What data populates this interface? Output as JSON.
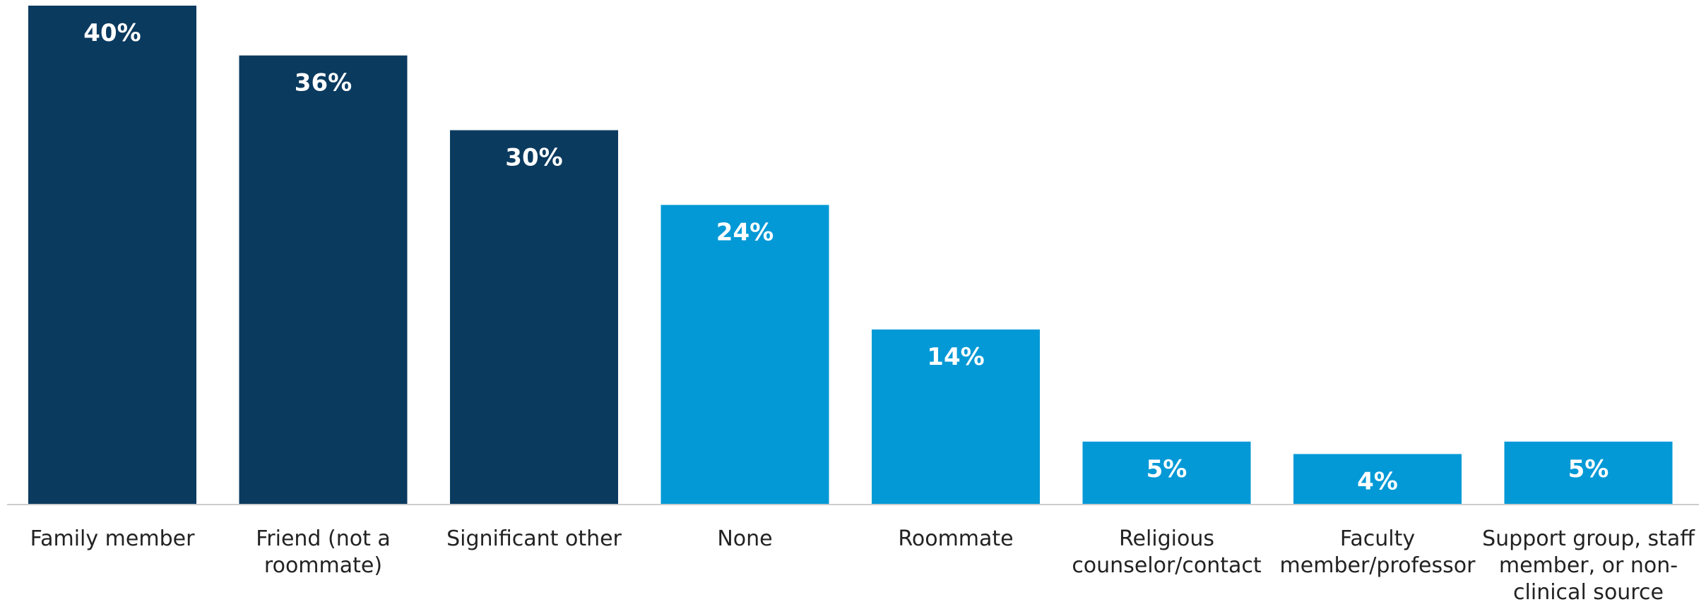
{
  "chart_data": {
    "type": "bar",
    "title": "",
    "xlabel": "",
    "ylabel": "",
    "ylim": [
      0,
      40
    ],
    "grid": false,
    "legend": "none",
    "value_suffix": "%",
    "categories": [
      "Family member",
      "Friend (not a roommate)",
      "Significant other",
      "None",
      "Roommate",
      "Religious counselor/contact",
      "Faculty member/professor",
      "Support group, staff member, or non-clinical source"
    ],
    "category_label_lines": [
      [
        "Family member"
      ],
      [
        "Friend (not a",
        "roommate)"
      ],
      [
        "Significant other"
      ],
      [
        "None"
      ],
      [
        "Roommate"
      ],
      [
        "Religious",
        "counselor/contact"
      ],
      [
        "Faculty",
        "member/professor"
      ],
      [
        "Support group, staff",
        "member, or non-",
        "clinical source"
      ]
    ],
    "values": [
      40,
      36,
      30,
      24,
      14,
      5,
      4,
      5
    ],
    "value_labels": [
      "40%",
      "36%",
      "30%",
      "24%",
      "14%",
      "5%",
      "4%",
      "5%"
    ],
    "bar_colors": [
      "#0b3a5f",
      "#0b3a5f",
      "#0b3a5f",
      "#0399d6",
      "#0399d6",
      "#0399d6",
      "#0399d6",
      "#0399d6"
    ],
    "axis_color": "#cccccc",
    "value_label_color": "#ffffff",
    "category_label_color": "#222222"
  }
}
